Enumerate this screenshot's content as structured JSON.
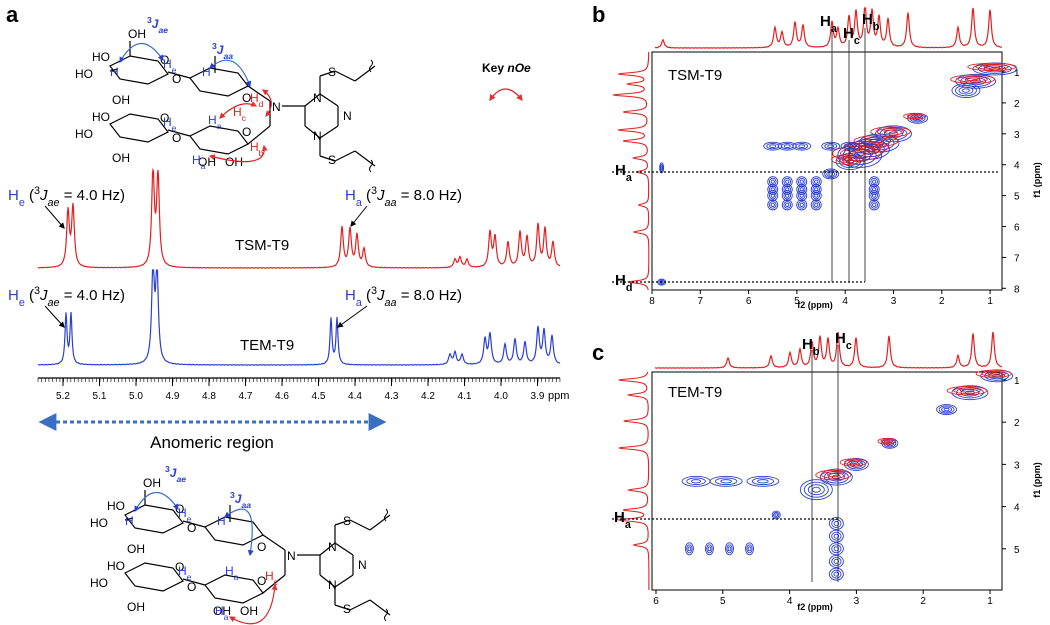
{
  "panel_a": {
    "label": "a",
    "key_noe": [
      "Key ",
      "n",
      "Oe"
    ],
    "top_structure": {
      "atoms": [
        "OH",
        "HO",
        "HO",
        "OH",
        "O",
        "O",
        "O",
        "N",
        "N",
        "N",
        "N",
        "S",
        "S",
        "HO",
        "HO",
        "OH",
        "O",
        "O",
        "OH",
        "OH",
        "O"
      ],
      "h_labels": [
        [
          "H"
        ],
        [
          "H",
          "e"
        ],
        [
          "H"
        ],
        [
          "H",
          "a"
        ],
        [
          "H",
          "d"
        ],
        [
          "H",
          "c"
        ],
        [
          "H",
          "b"
        ],
        [
          "H",
          "e"
        ],
        [
          "H",
          "a"
        ]
      ],
      "j_labels": [
        [
          "3",
          "J",
          "ae"
        ],
        [
          "3",
          "J",
          "aa"
        ]
      ]
    },
    "tsm": {
      "name": "TSM-T9",
      "he_label": [
        "H",
        "e",
        " (",
        "3",
        "J",
        "ae",
        " = 4.0 Hz)"
      ],
      "ha_label": [
        "H",
        "a",
        " (",
        "3",
        "J",
        "aa",
        " = 8.0 Hz)"
      ]
    },
    "tem": {
      "name": "TEM-T9",
      "he_label": [
        "H",
        "e",
        " (",
        "3",
        "J",
        "ae",
        " = 4.0 Hz)"
      ],
      "ha_label": [
        "H",
        "a",
        " (",
        "3",
        "J",
        "aa",
        " = 8.0 Hz)"
      ]
    },
    "axis": {
      "ticks": [
        "5.2",
        "5.1",
        "5.0",
        "4.9",
        "4.8",
        "4.7",
        "4.6",
        "4.5",
        "4.4",
        "4.3",
        "4.2",
        "4.1",
        "4.0",
        "3.9"
      ],
      "unit": "ppm"
    },
    "region_label": "Anomeric region",
    "bottom_structure": {
      "atoms": [
        "OH",
        "HO",
        "HO",
        "OH",
        "O",
        "O",
        "O",
        "N",
        "N",
        "N",
        "N",
        "S",
        "S",
        "HO",
        "HO",
        "OH",
        "O",
        "O",
        "OH",
        "OH",
        "O"
      ],
      "h_labels": [
        [
          "H"
        ],
        [
          "H",
          "e"
        ],
        [
          "H"
        ],
        [
          "H",
          "a"
        ],
        [
          "H",
          "e"
        ],
        [
          "H",
          "c"
        ],
        [
          "H",
          "a"
        ]
      ],
      "j_labels": [
        [
          "3",
          "J",
          "ae"
        ],
        [
          "3",
          "J",
          "aa"
        ]
      ]
    }
  },
  "panel_b": {
    "label": "b",
    "sample": "TSM-T9",
    "f2_label": "f2 (ppm)",
    "f1_label": "f1 (ppm)",
    "f2_ticks": [
      "8",
      "7",
      "6",
      "5",
      "4",
      "3",
      "2",
      "1"
    ],
    "f1_ticks": [
      "1",
      "2",
      "3",
      "4",
      "5",
      "6",
      "7",
      "8"
    ],
    "top_labels": [
      [
        "H",
        "a"
      ],
      [
        "H",
        "c"
      ],
      [
        "H",
        "b"
      ]
    ],
    "side_labels": [
      [
        "H",
        "a"
      ],
      [
        "H",
        "d"
      ]
    ]
  },
  "panel_c": {
    "label": "c",
    "sample": "TEM-T9",
    "f2_label": "f2 (ppm)",
    "f1_label": "f1 (ppm)",
    "f2_ticks": [
      "6",
      "5",
      "4",
      "3",
      "2",
      "1"
    ],
    "f1_ticks": [
      "1",
      "2",
      "3",
      "4",
      "5"
    ],
    "top_labels": [
      [
        "H",
        "b"
      ],
      [
        "H",
        "c"
      ]
    ],
    "side_labels": [
      [
        "H",
        "a"
      ]
    ]
  }
}
